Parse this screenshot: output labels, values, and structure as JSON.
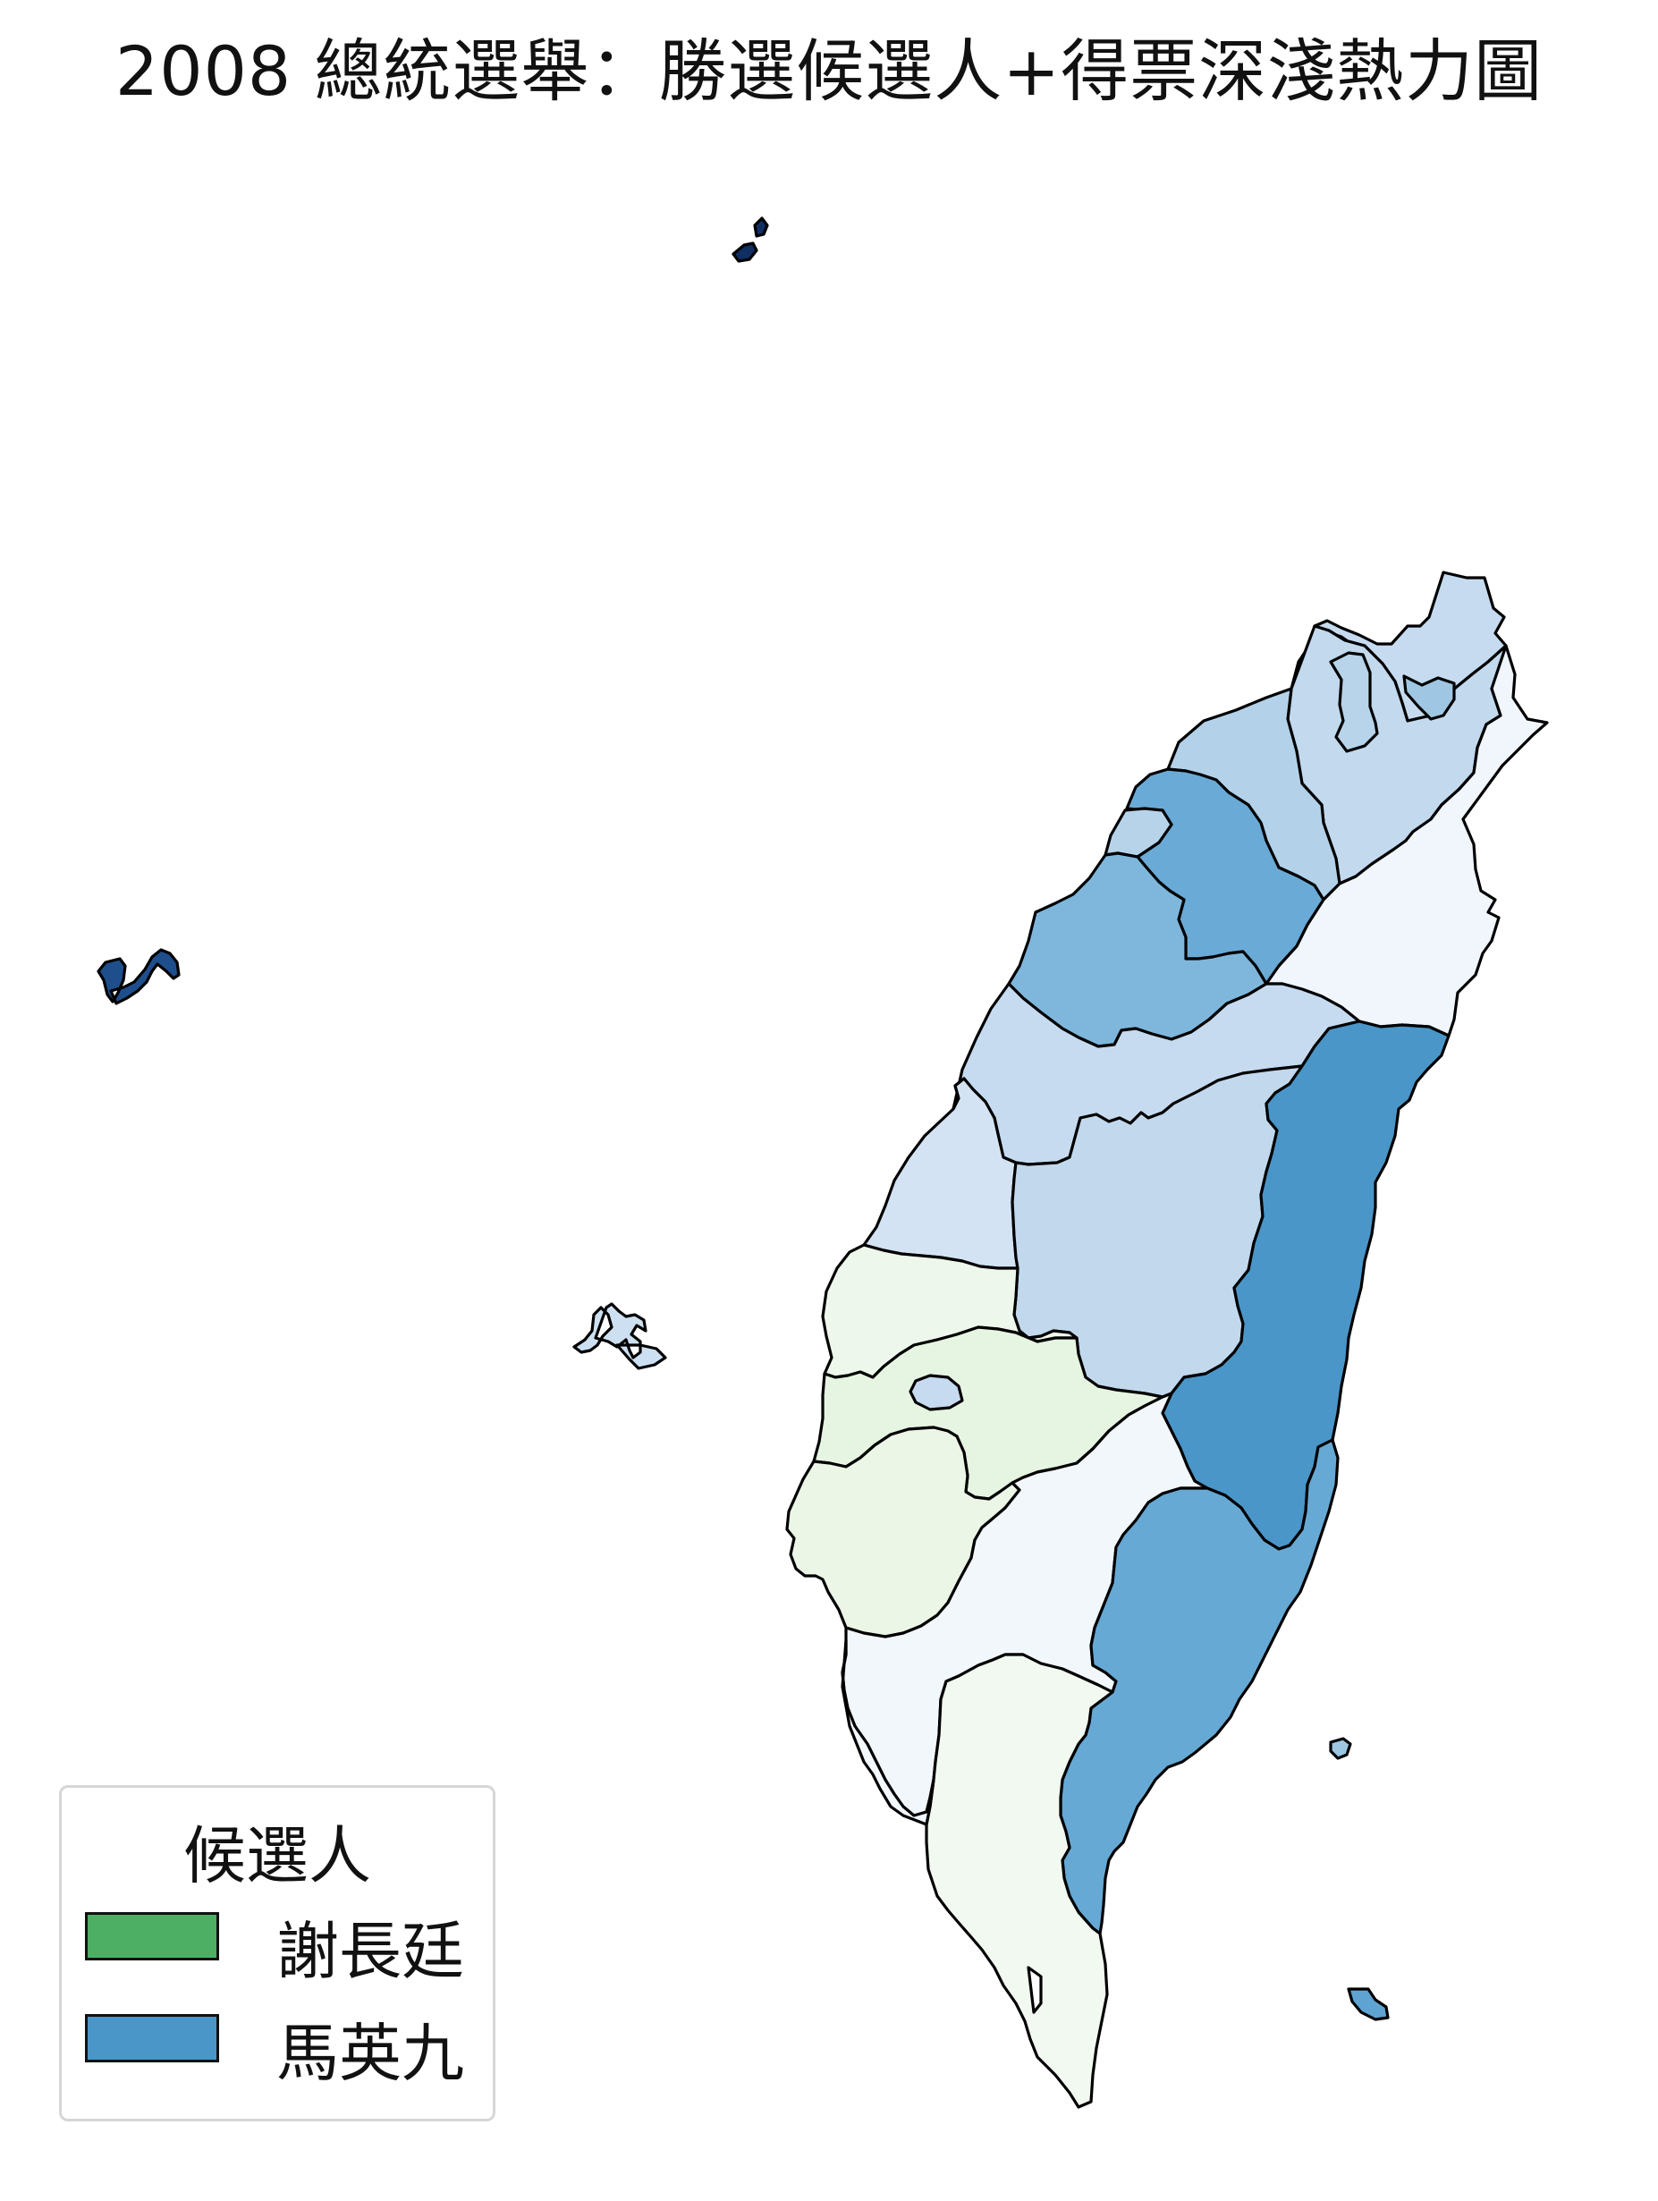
{
  "title": "2008 總統選舉：勝選候選人+得票深淺熱力圖",
  "legend": {
    "title": "候選人",
    "items": [
      {
        "label": "謝長廷",
        "color": "#4caf63"
      },
      {
        "label": "馬英九",
        "color": "#4a96c8"
      }
    ]
  },
  "map": {
    "stroke": "#000000",
    "regions": [
      {
        "id": "taipei-outer",
        "winner": "馬英九",
        "fill": "#c6dbef"
      },
      {
        "id": "keelung-north",
        "winner": "馬英九",
        "fill": "#c2d9ee"
      },
      {
        "id": "taipei-city",
        "winner": "馬英九",
        "fill": "#b7d4ea"
      },
      {
        "id": "keelung-city",
        "winner": "馬英九",
        "fill": "#9fc7e3"
      },
      {
        "id": "taoyuan",
        "winner": "馬英九",
        "fill": "#b3d2e9"
      },
      {
        "id": "hsinchu-county",
        "winner": "馬英九",
        "fill": "#6aaad6"
      },
      {
        "id": "hsinchu-city",
        "winner": "馬英九",
        "fill": "#b6d3ea"
      },
      {
        "id": "miaoli",
        "winner": "馬英九",
        "fill": "#7fb7dc"
      },
      {
        "id": "yilan",
        "winner": "謝長廷",
        "fill": "#f0f6fc"
      },
      {
        "id": "taichung",
        "winner": "馬英九",
        "fill": "#c6dbef"
      },
      {
        "id": "changhua",
        "winner": "馬英九",
        "fill": "#d3e3f3"
      },
      {
        "id": "nantou",
        "winner": "馬英九",
        "fill": "#c2d8ed"
      },
      {
        "id": "hualien",
        "winner": "馬英九",
        "fill": "#4a96c8"
      },
      {
        "id": "yunlin",
        "winner": "謝長廷",
        "fill": "#eef7ec"
      },
      {
        "id": "chiayi-county",
        "winner": "謝長廷",
        "fill": "#e6f4e2"
      },
      {
        "id": "chiayi-city",
        "winner": "馬英九",
        "fill": "#c6dbef"
      },
      {
        "id": "tainan",
        "winner": "謝長廷",
        "fill": "#ebf6e7"
      },
      {
        "id": "kaohsiung",
        "winner": "謝長廷",
        "fill": "#f2f7fc"
      },
      {
        "id": "taitung",
        "winner": "馬英九",
        "fill": "#66a9d5"
      },
      {
        "id": "pingtung",
        "winner": "謝長廷",
        "fill": "#f2f9f0"
      },
      {
        "id": "kaohsiung-city",
        "winner": "謝長廷",
        "fill": "#f3f8fd"
      },
      {
        "id": "penghu",
        "winner": "馬英九",
        "fill": "#cde0f1"
      },
      {
        "id": "kinmen",
        "winner": "馬英九",
        "fill": "#1f4e8c"
      },
      {
        "id": "matsu",
        "winner": "馬英九",
        "fill": "#0f2f63"
      },
      {
        "id": "green-island",
        "winner": "馬英九",
        "fill": "#9dc6e2"
      },
      {
        "id": "orchid-island",
        "winner": "馬英九",
        "fill": "#5fa3d2"
      }
    ]
  }
}
